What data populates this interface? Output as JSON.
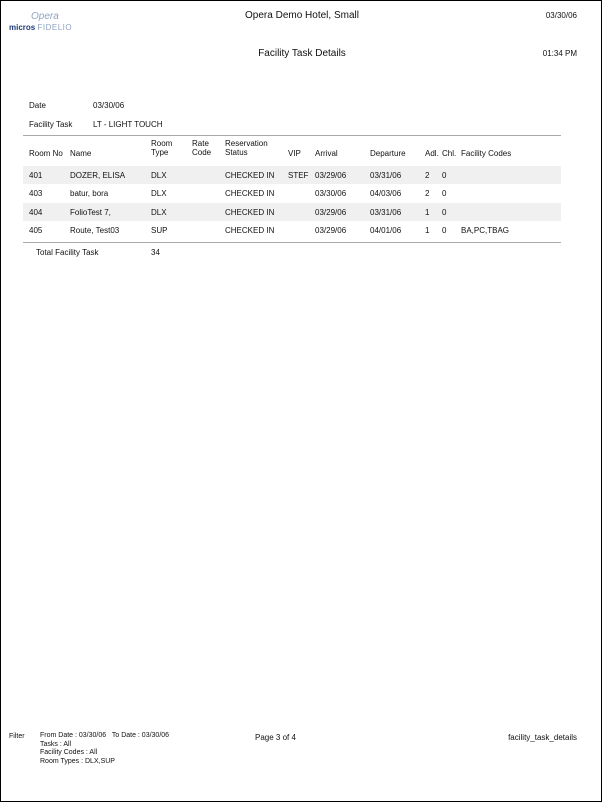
{
  "header": {
    "logo_top": "Opera",
    "logo_micros": "micros",
    "logo_fidelio": "FIDELIO",
    "hotel": "Opera Demo Hotel, Small",
    "date": "03/30/06",
    "title": "Facility Task Details",
    "time": "01:34 PM"
  },
  "params": {
    "date_label": "Date",
    "date_value": "03/30/06",
    "task_label": "Facility Task",
    "task_value": "LT - LIGHT TOUCH"
  },
  "columns": [
    [
      "Room No"
    ],
    [
      "Name"
    ],
    [
      "Room",
      "Type"
    ],
    [
      "Rate",
      "Code"
    ],
    [
      "Reservation",
      "Status"
    ],
    [
      "VIP"
    ],
    [
      "Arrival"
    ],
    [
      "Departure"
    ],
    [
      "Adl."
    ],
    [
      "Chl."
    ],
    [
      "Facility Codes"
    ]
  ],
  "rows": [
    [
      "401",
      "DOZER, ELISA",
      "DLX",
      "",
      "CHECKED IN",
      "STEF",
      "03/29/06",
      "03/31/06",
      "2",
      "0",
      ""
    ],
    [
      "403",
      "batur, bora",
      "DLX",
      "",
      "CHECKED IN",
      "",
      "03/30/06",
      "04/03/06",
      "2",
      "0",
      ""
    ],
    [
      "404",
      "FolioTest 7,",
      "DLX",
      "",
      "CHECKED IN",
      "",
      "03/29/06",
      "03/31/06",
      "1",
      "0",
      ""
    ],
    [
      "405",
      "Route, Test03",
      "SUP",
      "",
      "CHECKED IN",
      "",
      "03/29/06",
      "04/01/06",
      "1",
      "0",
      "BA,PC,TBAG"
    ]
  ],
  "total": {
    "label": "Total Facility Task",
    "value": "34"
  },
  "footer": {
    "filter_label": "Filter",
    "filters": [
      "From Date : 03/30/06   To Date : 03/30/06",
      "Tasks : All",
      "Facility Codes : All",
      "Room Types : DLX,SUP"
    ],
    "page": "Page 3 of 4",
    "report": "facility_task_details"
  }
}
